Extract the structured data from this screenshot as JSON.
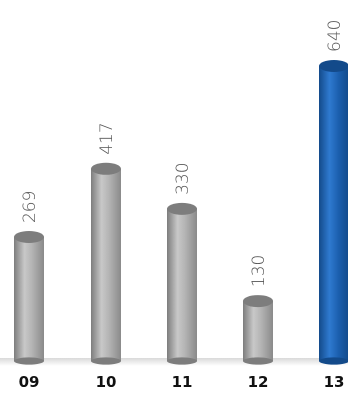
{
  "chart_data": {
    "type": "bar",
    "categories": [
      "09",
      "10",
      "11",
      "12",
      "13"
    ],
    "values": [
      269,
      417,
      330,
      130,
      640
    ],
    "ylim": [
      0,
      640
    ],
    "grid": false,
    "highlight_index": 4,
    "colors": {
      "bar_gray": "#a6a6a6",
      "bar_gray_dark": "#7d7d7d",
      "bar_gray_light": "#c8c8c8",
      "bar_blue": "#1b5fae",
      "bar_blue_dark": "#134a8a",
      "bar_blue_light": "#2f7ad0"
    }
  }
}
